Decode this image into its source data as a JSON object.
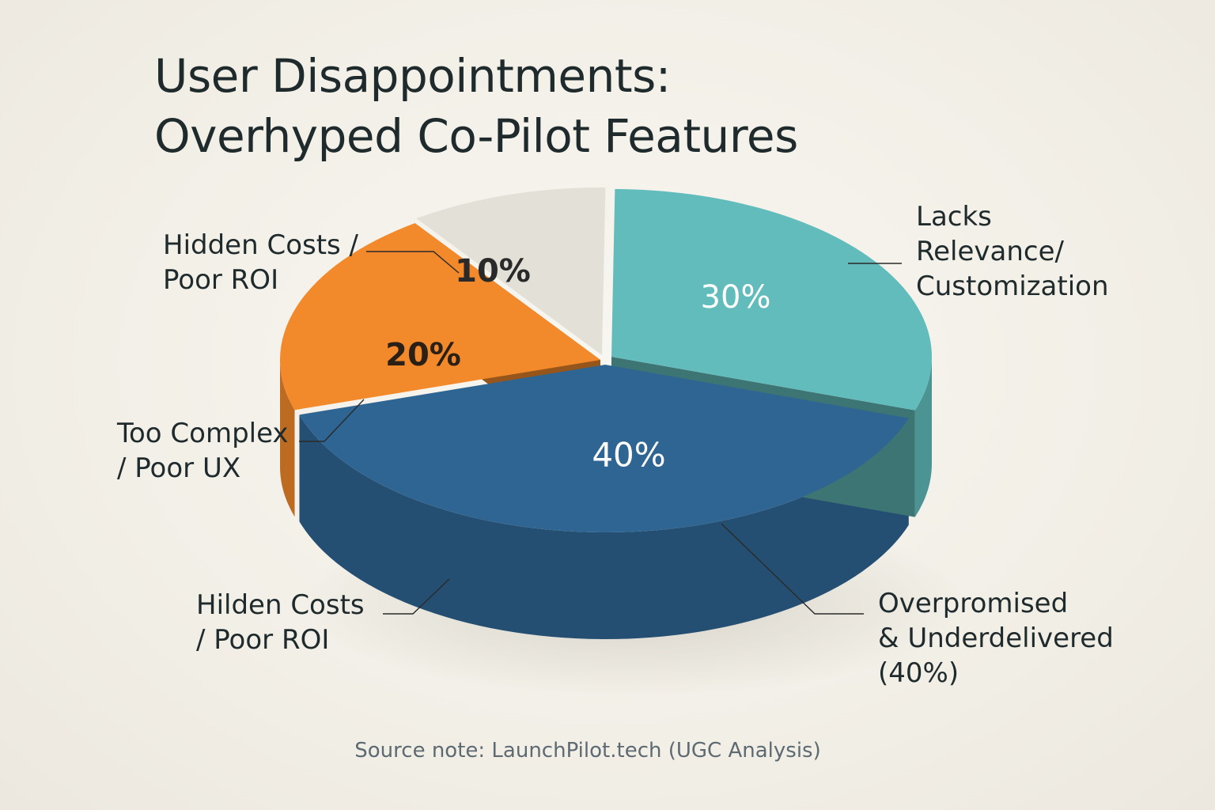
{
  "title_lines": [
    "User Disappointments:",
    "Overhyped Co-Pilot Features"
  ],
  "source_note": "Source note: LaunchPilot.tech (UGC Analysis)",
  "chart_data": {
    "type": "pie",
    "style": "3d",
    "title": "User Disappointments: Overhyped Co-Pilot Features",
    "slices": [
      {
        "label": "Lacks Relevance/ Customization",
        "value": 30,
        "value_label": "30%",
        "color": "#62bcbc"
      },
      {
        "label": "Overpromised & Underdelivered (40%)",
        "value": 40,
        "value_label": "40%",
        "color": "#2f6592"
      },
      {
        "label": "Too Complex / Poor UX",
        "value": 20,
        "value_label": "20%",
        "color": "#f2892a"
      },
      {
        "label": "Hidden Costs / Poor ROI",
        "value": 10,
        "value_label": "10%",
        "color": "#e3e0d8"
      }
    ],
    "labels": {
      "lacks_relevance": [
        "Lacks",
        "Relevance/",
        "Customization"
      ],
      "overpromised": [
        "Overpromised",
        "& Underdelivered",
        "(40%)"
      ],
      "too_complex": [
        "Too Complex",
        "/ Poor UX"
      ],
      "hidden_costs_top": [
        "Hidden Costs /",
        "Poor ROI"
      ],
      "hidden_costs_bottom": [
        "Hilden Costs",
        "/ Poor ROI"
      ]
    }
  }
}
